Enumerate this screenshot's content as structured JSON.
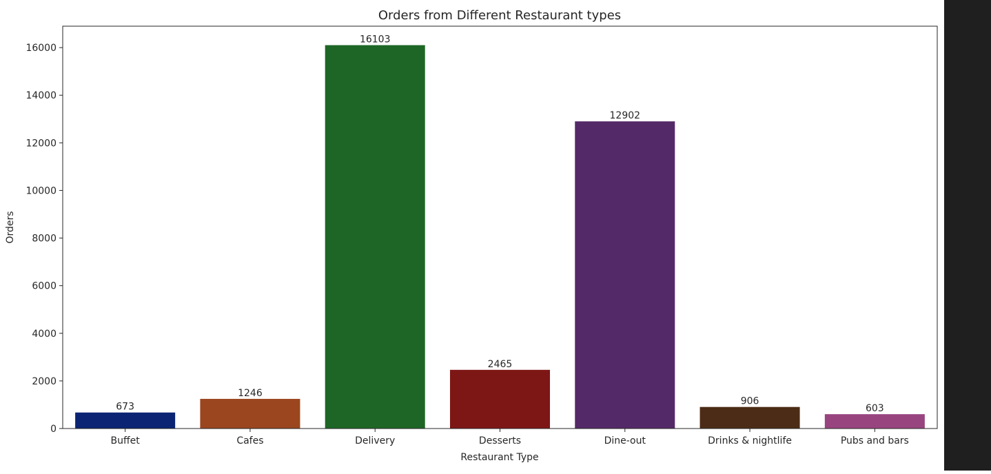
{
  "chart_data": {
    "type": "bar",
    "title": "Orders from Different Restaurant types",
    "xlabel": "Restaurant Type",
    "ylabel": "Orders",
    "categories": [
      "Buffet",
      "Cafes",
      "Delivery",
      "Desserts",
      "Dine-out",
      "Drinks & nightlife",
      "Pubs and bars"
    ],
    "values": [
      673,
      1246,
      16103,
      2465,
      12902,
      906,
      603
    ],
    "data_labels": [
      "673",
      "1246",
      "16103",
      "2465",
      "12902",
      "906",
      "603"
    ],
    "colors": [
      "#0b2473",
      "#9b461f",
      "#1e6626",
      "#7d1716",
      "#542968",
      "#4c2c16",
      "#98457f"
    ],
    "ylim": [
      0,
      16900
    ],
    "yticks": [
      0,
      2000,
      4000,
      6000,
      8000,
      10000,
      12000,
      14000,
      16000
    ],
    "ytick_labels": [
      "0",
      "2000",
      "4000",
      "6000",
      "8000",
      "10000",
      "12000",
      "14000",
      "16000"
    ],
    "grid": false,
    "legend": "none"
  }
}
